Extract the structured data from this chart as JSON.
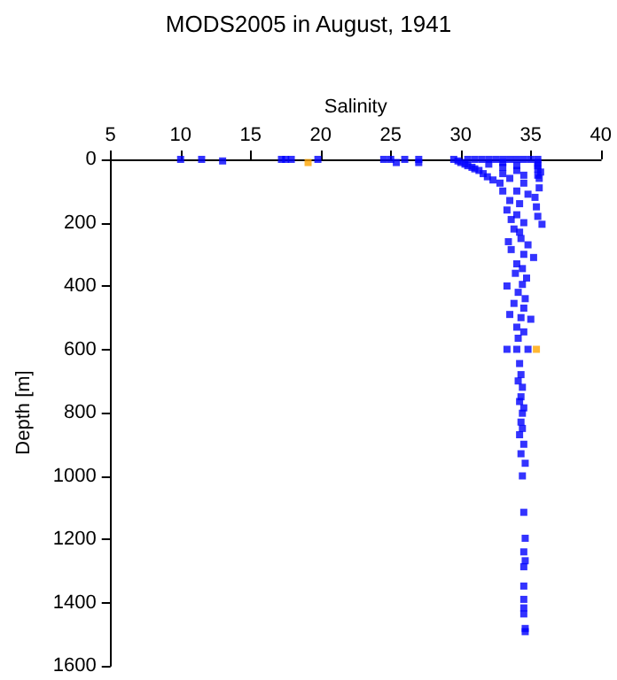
{
  "chart_data": {
    "type": "scatter",
    "title": "MODS2005 in August, 1941",
    "xlabel": "Salinity",
    "ylabel": "Depth [m]",
    "xlim": [
      5,
      40
    ],
    "xticks": [
      5,
      10,
      15,
      20,
      25,
      30,
      35,
      40
    ],
    "ylim": [
      1600,
      0
    ],
    "yticks": [
      0,
      200,
      400,
      600,
      800,
      1000,
      1200,
      1400,
      1600
    ],
    "marker": "square",
    "series": [
      {
        "color": "#0000ff",
        "x": [
          10,
          11.5,
          13,
          17.2,
          17.5,
          17.9,
          19.8,
          24.5,
          25,
          25.4,
          26,
          27,
          27,
          29.5,
          29.8,
          30,
          30.3,
          30.5,
          30.8,
          31,
          31.3,
          31.6,
          31.9,
          32.3,
          32.8,
          30.5,
          31,
          31.5,
          32,
          32.5,
          33,
          33.5,
          34,
          34.5,
          35,
          35.5,
          35.5,
          35.5,
          35.5,
          35.7,
          35.5,
          35.6,
          33,
          34,
          32,
          33,
          34,
          33,
          34.5,
          33.5,
          34.5,
          35.6,
          34,
          33,
          34.8,
          35.3,
          33.5,
          34.2,
          35.4,
          33.3,
          34,
          35.5,
          33.6,
          34.5,
          35.8,
          33.8,
          34.2,
          34.3,
          33.4,
          34.8,
          33.6,
          34.5,
          35.2,
          34,
          34.4,
          33.9,
          34.7,
          33.3,
          34.4,
          34.1,
          34.6,
          33.8,
          34.5,
          33.5,
          34.3,
          35,
          34,
          34.5,
          34.1,
          33.3,
          34,
          34.8,
          34.2,
          34.3,
          34.1,
          34.4,
          34.3,
          34.2,
          34.5,
          34.4,
          34.3,
          34.4,
          34.2,
          34.5,
          34.3,
          34.6,
          34.4,
          34.5,
          34.6,
          34.5,
          34.6,
          34.5,
          34.5,
          34.5,
          34.5,
          34.5,
          34.6,
          34.6
        ],
        "values": [
          0,
          0,
          5,
          0,
          0,
          0,
          0,
          0,
          0,
          10,
          0,
          0,
          10,
          0,
          5,
          10,
          15,
          20,
          25,
          30,
          35,
          45,
          55,
          65,
          75,
          0,
          0,
          0,
          0,
          0,
          0,
          0,
          0,
          0,
          0,
          0,
          10,
          20,
          30,
          40,
          50,
          60,
          10,
          20,
          15,
          25,
          35,
          45,
          50,
          60,
          75,
          90,
          100,
          100,
          110,
          120,
          130,
          140,
          150,
          160,
          175,
          180,
          190,
          200,
          205,
          220,
          230,
          250,
          260,
          270,
          285,
          300,
          310,
          330,
          345,
          360,
          375,
          400,
          395,
          420,
          440,
          455,
          470,
          490,
          500,
          505,
          530,
          545,
          565,
          600,
          600,
          600,
          645,
          680,
          700,
          720,
          750,
          765,
          785,
          802,
          830,
          850,
          870,
          900,
          930,
          960,
          1000,
          1115,
          1197,
          1240,
          1268,
          1287,
          1348,
          1390,
          1417,
          1436,
          1482,
          1492
        ]
      },
      {
        "color": "#ffa500",
        "x": [
          19.1,
          35.4
        ],
        "values": [
          10,
          600
        ]
      }
    ]
  }
}
